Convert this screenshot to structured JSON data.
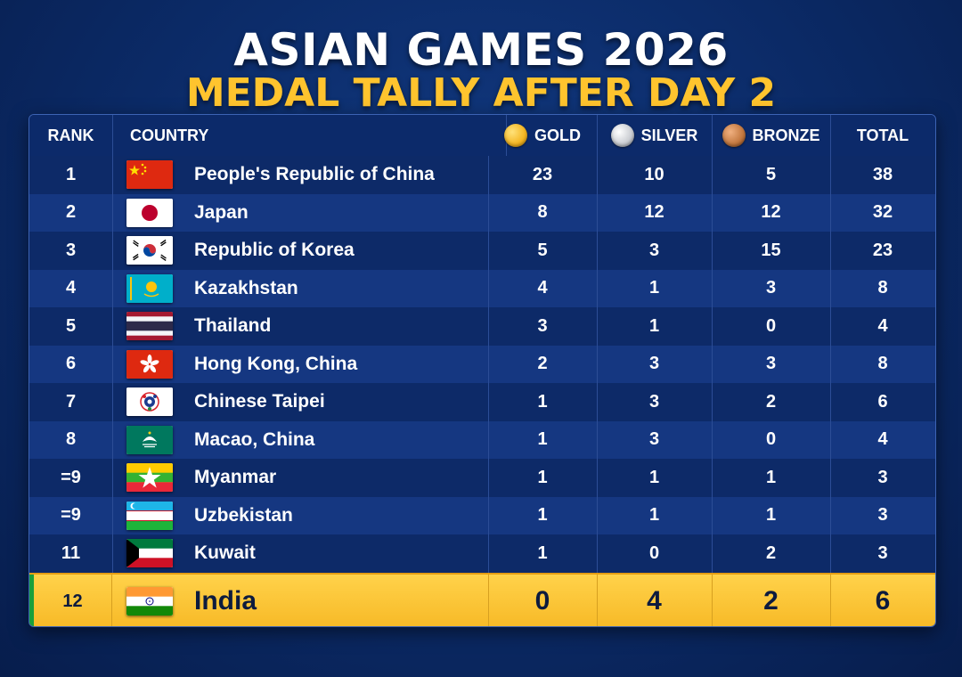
{
  "header": {
    "title": "ASIAN GAMES 2026",
    "subtitle": "MEDAL TALLY AFTER DAY 2"
  },
  "columns": {
    "rank": "RANK",
    "country": "COUNTRY",
    "gold": "GOLD",
    "silver": "SILVER",
    "bronze": "BRONZE",
    "total": "TOTAL"
  },
  "colors": {
    "gold": "#f4b521",
    "silver": "#c9ccd1",
    "bronze": "#c2773e",
    "highlight": "#ffc42e"
  },
  "rows": [
    {
      "rank": "1",
      "country": "People's Republic of China",
      "flag": "china-flag-icon",
      "gold": "23",
      "silver": "10",
      "bronze": "5",
      "total": "38"
    },
    {
      "rank": "2",
      "country": "Japan",
      "flag": "japan-flag-icon",
      "gold": "8",
      "silver": "12",
      "bronze": "12",
      "total": "32"
    },
    {
      "rank": "3",
      "country": "Republic of Korea",
      "flag": "korea-flag-icon",
      "gold": "5",
      "silver": "3",
      "bronze": "15",
      "total": "23"
    },
    {
      "rank": "4",
      "country": "Kazakhstan",
      "flag": "kazakhstan-flag-icon",
      "gold": "4",
      "silver": "1",
      "bronze": "3",
      "total": "8"
    },
    {
      "rank": "5",
      "country": "Thailand",
      "flag": "thailand-flag-icon",
      "gold": "3",
      "silver": "1",
      "bronze": "0",
      "total": "4"
    },
    {
      "rank": "6",
      "country": "Hong Kong, China",
      "flag": "hong-kong-flag-icon",
      "gold": "2",
      "silver": "3",
      "bronze": "3",
      "total": "8"
    },
    {
      "rank": "7",
      "country": "Chinese Taipei",
      "flag": "chinese-taipei-flag-icon",
      "gold": "1",
      "silver": "3",
      "bronze": "2",
      "total": "6"
    },
    {
      "rank": "8",
      "country": "Macao, China",
      "flag": "macao-flag-icon",
      "gold": "1",
      "silver": "3",
      "bronze": "0",
      "total": "4"
    },
    {
      "rank": "=9",
      "country": "Myanmar",
      "flag": "myanmar-flag-icon",
      "gold": "1",
      "silver": "1",
      "bronze": "1",
      "total": "3"
    },
    {
      "rank": "=9",
      "country": "Uzbekistan",
      "flag": "uzbekistan-flag-icon",
      "gold": "1",
      "silver": "1",
      "bronze": "1",
      "total": "3"
    },
    {
      "rank": "11",
      "country": "Kuwait",
      "flag": "kuwait-flag-icon",
      "gold": "1",
      "silver": "0",
      "bronze": "2",
      "total": "3"
    },
    {
      "rank": "12",
      "country": "India",
      "flag": "india-flag-icon",
      "gold": "0",
      "silver": "4",
      "bronze": "2",
      "total": "6",
      "highlighted": true
    }
  ]
}
